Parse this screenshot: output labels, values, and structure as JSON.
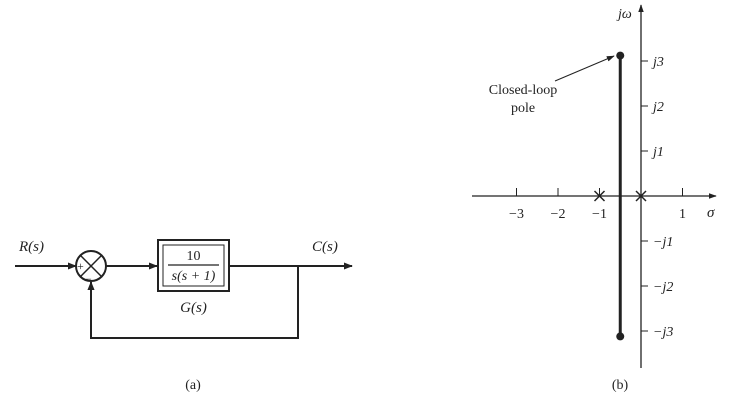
{
  "block_diagram": {
    "input_label": "R(s)",
    "output_label": "C(s)",
    "sum_plus": "+",
    "sum_minus": "−",
    "transfer_numerator": "10",
    "transfer_denominator": "s(s + 1)",
    "block_name": "G(s)",
    "caption": "(a)"
  },
  "root_locus": {
    "vertical_axis_label": "jω",
    "horizontal_axis_label": "σ",
    "annotation": [
      "Closed-loop",
      "pole"
    ],
    "caption": "(b)",
    "real_ticks": [
      {
        "value": -3,
        "label": "−3"
      },
      {
        "value": -2,
        "label": "−2"
      },
      {
        "value": -1,
        "label": "−1"
      },
      {
        "value": 1,
        "label": "1"
      }
    ],
    "imag_ticks": [
      {
        "value": 3,
        "label": "j3"
      },
      {
        "value": 2,
        "label": "j2"
      },
      {
        "value": 1,
        "label": "j1"
      },
      {
        "value": -1,
        "label": "−j1"
      },
      {
        "value": -2,
        "label": "−j2"
      },
      {
        "value": -3,
        "label": "−j3"
      }
    ],
    "open_loop_poles": [
      0,
      -1
    ],
    "locus_real_part": -0.5,
    "closed_loop_poles": [
      {
        "re": -0.5,
        "im": 3.12
      },
      {
        "re": -0.5,
        "im": -3.12
      }
    ]
  }
}
